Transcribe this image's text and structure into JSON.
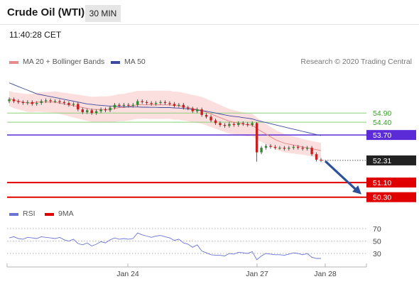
{
  "header": {
    "instrument": "Crude Oil (WTI)",
    "timeframe": "30 MIN",
    "time": "11:40:28 CET"
  },
  "legend": {
    "ma20": "MA 20 + Bollinger Bands",
    "ma50": "MA 50",
    "rsi": "RSI",
    "ma9": "9MA"
  },
  "credit": "Research © 2020 Trading Central",
  "colors": {
    "ma20": "#e78a8a",
    "band": "#fbdada",
    "ma50": "#3f4a9c",
    "up": "#2e8b2e",
    "down": "#c82020",
    "resistance": "#8bd17a",
    "pivot": "#5a2bd6",
    "support": "#e00000",
    "last": "#222222",
    "rsi": "#6b73d6",
    "arrow": "#2f4f9a"
  },
  "chart_data": [
    {
      "type": "candlestick",
      "x_labels": [
        "Jan 24",
        "Jan 27",
        "Jan 28"
      ],
      "ylim": [
        49.9,
        57.2
      ],
      "levels": [
        {
          "value": 54.9,
          "label": "54.90",
          "kind": "resistance"
        },
        {
          "value": 54.4,
          "label": "54.40",
          "kind": "resistance"
        },
        {
          "value": 53.7,
          "label": "53.70",
          "kind": "pivot"
        },
        {
          "value": 51.1,
          "label": "51.10",
          "kind": "support"
        },
        {
          "value": 50.3,
          "label": "50.30",
          "kind": "support"
        }
      ],
      "last_price": {
        "value": 52.31,
        "label": "52.31"
      },
      "close": [
        55.65,
        55.55,
        55.5,
        55.45,
        55.5,
        55.4,
        55.45,
        55.55,
        55.6,
        55.55,
        55.55,
        55.5,
        55.45,
        55.35,
        55.4,
        55.1,
        54.95,
        55.05,
        54.9,
        55.0,
        55.1,
        55.05,
        55.2,
        55.35,
        55.3,
        55.35,
        55.3,
        55.35,
        55.55,
        55.5,
        55.45,
        55.4,
        55.45,
        55.5,
        55.45,
        55.4,
        55.3,
        55.35,
        55.2,
        55.15,
        55.0,
        55.1,
        54.8,
        54.7,
        54.5,
        54.35,
        54.25,
        54.2,
        54.3,
        54.25,
        54.35,
        54.3,
        54.25,
        54.35,
        52.75,
        53.0,
        53.1,
        53.05,
        53.0,
        53.0,
        52.95,
        53.0,
        53.05,
        53.0,
        52.95,
        53.0,
        52.65,
        52.35,
        52.31
      ],
      "ma20": [
        55.7,
        55.6,
        55.55,
        55.5,
        55.45,
        55.45,
        55.5,
        55.5,
        55.5,
        55.5,
        55.5,
        55.45,
        55.4,
        55.35,
        55.3,
        55.25,
        55.2,
        55.15,
        55.1,
        55.1,
        55.1,
        55.1,
        55.1,
        55.15,
        55.2,
        55.2,
        55.25,
        55.3,
        55.35,
        55.35,
        55.35,
        55.35,
        55.35,
        55.35,
        55.35,
        55.35,
        55.3,
        55.3,
        55.25,
        55.2,
        55.15,
        55.1,
        55.05,
        54.95,
        54.85,
        54.75,
        54.65,
        54.55,
        54.45,
        54.4,
        54.35,
        54.3,
        54.25,
        54.25,
        54.05,
        53.9,
        53.75,
        53.6,
        53.45,
        53.35,
        53.25,
        53.2,
        53.15,
        53.1,
        53.05,
        53.0,
        52.95,
        52.9,
        52.85
      ],
      "ma50": [
        56.55,
        56.45,
        56.35,
        56.25,
        56.15,
        56.05,
        55.95,
        55.9,
        55.85,
        55.8,
        55.75,
        55.7,
        55.65,
        55.6,
        55.55,
        55.5,
        55.45,
        55.4,
        55.37,
        55.34,
        55.32,
        55.3,
        55.28,
        55.27,
        55.26,
        55.25,
        55.24,
        55.23,
        55.23,
        55.22,
        55.22,
        55.21,
        55.21,
        55.2,
        55.2,
        55.2,
        55.18,
        55.17,
        55.15,
        55.13,
        55.1,
        55.07,
        55.03,
        55.0,
        54.95,
        54.9,
        54.85,
        54.8,
        54.75,
        54.72,
        54.69,
        54.65,
        54.62,
        54.58,
        54.5,
        54.44,
        54.38,
        54.32,
        54.26,
        54.2,
        54.14,
        54.08,
        54.02,
        53.96,
        53.9,
        53.84,
        53.78,
        53.72,
        53.67
      ]
    },
    {
      "type": "line",
      "levels": [
        70,
        50,
        30
      ],
      "level_labels": [
        "70",
        "50",
        "30"
      ],
      "ylim": [
        10,
        80
      ],
      "series": [
        {
          "name": "RSI",
          "values": [
            55,
            57,
            54,
            53,
            56,
            55,
            54,
            57,
            56,
            55,
            54,
            56,
            52,
            50,
            53,
            46,
            44,
            47,
            42,
            45,
            49,
            47,
            52,
            55,
            53,
            54,
            53,
            54,
            63,
            60,
            58,
            56,
            58,
            59,
            57,
            55,
            51,
            53,
            47,
            45,
            40,
            44,
            34,
            31,
            28,
            27,
            27,
            26,
            30,
            29,
            32,
            31,
            30,
            33,
            20,
            26,
            30,
            29,
            28,
            28,
            27,
            29,
            31,
            30,
            28,
            30,
            24,
            22,
            22
          ]
        }
      ]
    }
  ]
}
